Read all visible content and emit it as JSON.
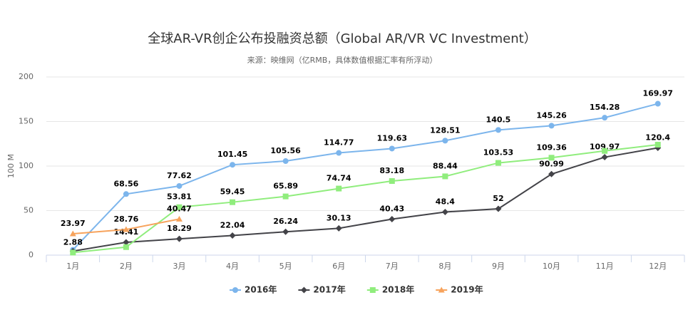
{
  "chart_data": {
    "type": "line",
    "title": "全球AR-VR创企公布投融资总额（Global AR/VR VC Investment）",
    "subtitle": "来源：映维网（亿RMB，具体数值根据汇率有所浮动）",
    "y_label": "100 M",
    "categories": [
      "1月",
      "2月",
      "3月",
      "4月",
      "5月",
      "6月",
      "7月",
      "8月",
      "9月",
      "10月",
      "11月",
      "12月"
    ],
    "ylim": [
      0,
      200
    ],
    "yticks": [
      0,
      50,
      100,
      150,
      200
    ],
    "grid": true,
    "legend": "bottom",
    "series": [
      {
        "name": "2016年",
        "color": "#7cb5ec",
        "marker": "circle",
        "values": [
          6,
          68.56,
          77.62,
          101.45,
          105.56,
          114.77,
          119.63,
          128.51,
          140.5,
          145.26,
          154.28,
          169.97
        ],
        "value_labels": [
          null,
          "68.56",
          "77.62",
          "101.45",
          "105.56",
          "114.77",
          "119.63",
          "128.51",
          "140.5",
          "145.26",
          "154.28",
          "169.97"
        ]
      },
      {
        "name": "2017年",
        "color": "#434348",
        "marker": "diamond",
        "values": [
          4.5,
          14.41,
          18.29,
          22.04,
          26.24,
          30.13,
          40.43,
          48.4,
          52,
          90.99,
          109.97,
          120.4
        ],
        "value_labels": [
          null,
          "14.41",
          "18.29",
          "22.04",
          "26.24",
          "30.13",
          "40.43",
          "48.4",
          "52",
          "90.99",
          "109.97",
          "120.4"
        ]
      },
      {
        "name": "2018年",
        "color": "#90ed7d",
        "marker": "square",
        "values": [
          2.88,
          9,
          53.81,
          59.45,
          65.89,
          74.74,
          83.18,
          88.44,
          103.53,
          109.36,
          117,
          124
        ],
        "value_labels": [
          "2.88",
          null,
          "53.81",
          "59.45",
          "65.89",
          "74.74",
          "83.18",
          "88.44",
          "103.53",
          "109.36",
          null,
          null
        ]
      },
      {
        "name": "2019年",
        "color": "#f7a35c",
        "marker": "triangle",
        "values": [
          23.97,
          28.76,
          40.47,
          null,
          null,
          null,
          null,
          null,
          null,
          null,
          null,
          null
        ],
        "value_labels": [
          "23.97",
          "28.76",
          "40.47",
          null,
          null,
          null,
          null,
          null,
          null,
          null,
          null,
          null
        ]
      }
    ]
  }
}
